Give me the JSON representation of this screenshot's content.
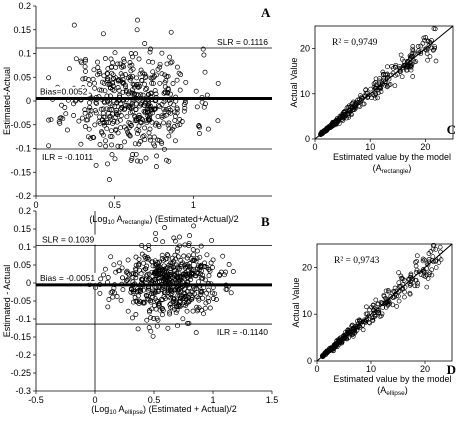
{
  "chart_data": [
    {
      "panel": "A",
      "type": "scatter",
      "ylabel": "Estimated-Actual",
      "xlabel_parts": [
        "(Log",
        "10",
        " A",
        "rectangle",
        ") (Estimated+Actual)/2"
      ],
      "xlim": [
        0,
        1.5
      ],
      "ylim": [
        -0.2,
        0.2
      ],
      "xticks": [
        "0",
        "0.5",
        "1"
      ],
      "yticks": [
        "0.2",
        "0.15",
        "0.1",
        "0.05",
        "0",
        "-0.05",
        "-0.1",
        "-0.15",
        "-0.2"
      ],
      "hlines": [
        {
          "value": 0.1116,
          "label": "SLR = 0.1116",
          "weight": "thin"
        },
        {
          "value": 0.0052,
          "label": "Bias=0.0052",
          "weight": "thick"
        },
        {
          "value": -0.1011,
          "label": "ILR = -0.1011",
          "weight": "thin"
        }
      ],
      "scatter": {
        "n": 520,
        "x_center": 0.6,
        "x_spread": 0.2,
        "x_range": [
          0.08,
          1.25
        ],
        "y_sd": 0.055,
        "seed": 11
      }
    },
    {
      "panel": "B",
      "type": "scatter",
      "ylabel": "Estimated - Actual",
      "xlabel_parts": [
        "(Log",
        "10",
        " A",
        "ellipse",
        ") (Estimated + Actual)/2"
      ],
      "xlim": [
        -0.5,
        1.5
      ],
      "ylim": [
        -0.3,
        0.2
      ],
      "xticks": [
        "-0.5",
        "0",
        "0.5",
        "1",
        "1.5"
      ],
      "yticks": [
        "0.2",
        "0.15",
        "0.1",
        "0.05",
        "0",
        "-0.05",
        "-0.1",
        "-0.15",
        "-0.2",
        "-0.25",
        "-0.3"
      ],
      "hlines": [
        {
          "value": 0.1039,
          "label": "SLR = 0.1039",
          "weight": "thin"
        },
        {
          "value": -0.0051,
          "label": "Bias = -0.0051",
          "weight": "thick"
        },
        {
          "value": -0.114,
          "label": "ILR = -0.1140",
          "weight": "thin"
        }
      ],
      "scatter": {
        "n": 560,
        "x_center": 0.6,
        "x_spread": 0.22,
        "x_range": [
          -0.2,
          1.2
        ],
        "y_sd": 0.05,
        "seed": 23
      }
    },
    {
      "panel": "C",
      "type": "scatter",
      "r2_label": "R² = 0,9749",
      "ylabel": "Actual Value",
      "xlabel": "Estimated value  by the model",
      "xlabel2_parts": [
        "(A",
        "rectangle",
        ")"
      ],
      "xlim": [
        0,
        25
      ],
      "ylim": [
        0,
        25
      ],
      "xticks": [
        "0",
        "10",
        "20"
      ],
      "yticks": [
        "0",
        "10",
        "20"
      ],
      "fit_line": {
        "slope": 1,
        "intercept": 0
      },
      "scatter": {
        "n": 330,
        "x_range": [
          1,
          22
        ],
        "skew": 1.6,
        "rel_sd": 0.09,
        "seed": 37
      }
    },
    {
      "panel": "D",
      "type": "scatter",
      "r2_label": "R² = 0,9743",
      "ylabel": "Actual Value",
      "xlabel": "Estimated value  by the model",
      "xlabel2_parts": [
        "(A",
        "ellipse",
        ")"
      ],
      "xlim": [
        0,
        25
      ],
      "ylim": [
        0,
        25
      ],
      "xticks": [
        "0",
        "10",
        "20"
      ],
      "yticks": [
        "0",
        "10",
        "20"
      ],
      "fit_line": {
        "slope": 1,
        "intercept": 0
      },
      "scatter": {
        "n": 360,
        "x_range": [
          1,
          23
        ],
        "skew": 1.6,
        "rel_sd": 0.09,
        "seed": 51
      }
    }
  ]
}
